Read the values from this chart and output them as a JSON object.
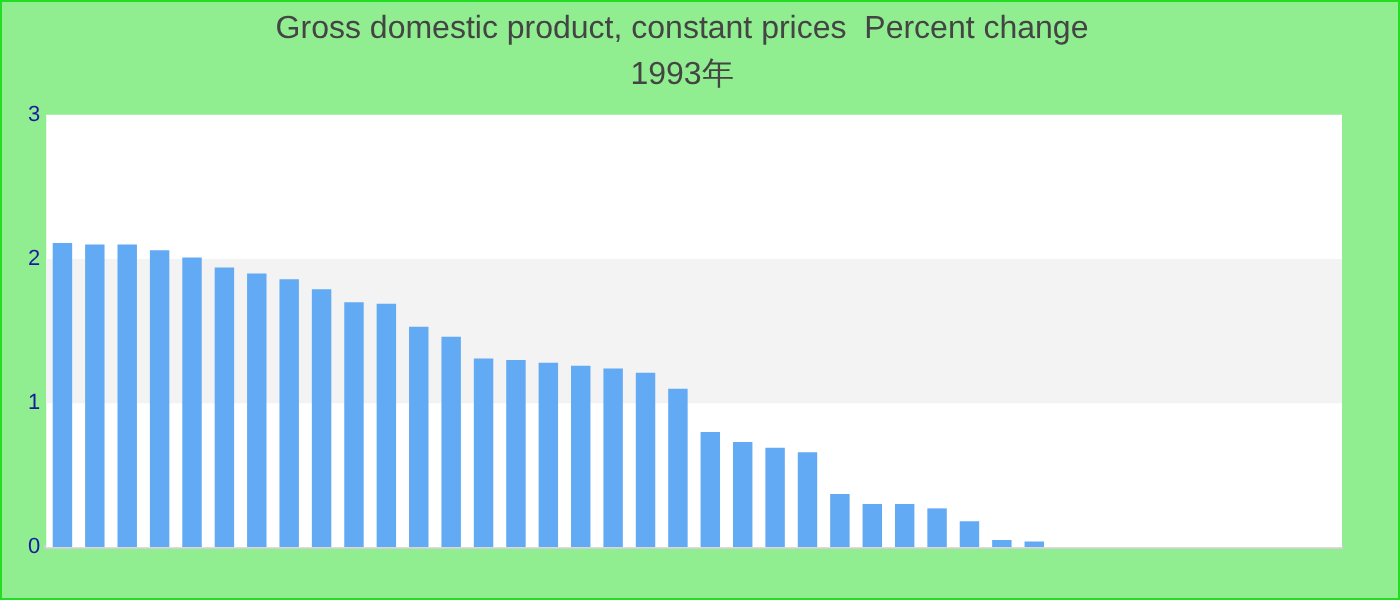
{
  "chart_data": {
    "type": "bar",
    "title": "Gross domestic product, constant prices  Percent change",
    "subtitle": "1993年",
    "categories": [
      null,
      null,
      null,
      null,
      null,
      null,
      null,
      null,
      null,
      null,
      null,
      null,
      null,
      null,
      null,
      null,
      null,
      null,
      null,
      null,
      null,
      null,
      null,
      null,
      null,
      null,
      null,
      null,
      null,
      null,
      null,
      null,
      null,
      null,
      null,
      null,
      null,
      null,
      null,
      null
    ],
    "values": [
      2.11,
      2.1,
      2.1,
      2.06,
      2.01,
      1.94,
      1.9,
      1.86,
      1.79,
      1.7,
      1.69,
      1.53,
      1.46,
      1.31,
      1.3,
      1.28,
      1.26,
      1.24,
      1.21,
      1.1,
      0.8,
      0.73,
      0.69,
      0.66,
      0.37,
      0.3,
      0.3,
      0.27,
      0.18,
      0.05,
      0.04,
      0,
      0,
      0,
      0,
      0,
      0,
      0,
      0,
      0
    ],
    "color": "#62aaf3",
    "ylim": [
      0,
      3
    ],
    "yticks": [
      0,
      1,
      2,
      3
    ],
    "grid": false,
    "bands": [
      {
        "axis": "y",
        "from": 1,
        "to": 2,
        "color": "#f3f3f3"
      }
    ]
  }
}
